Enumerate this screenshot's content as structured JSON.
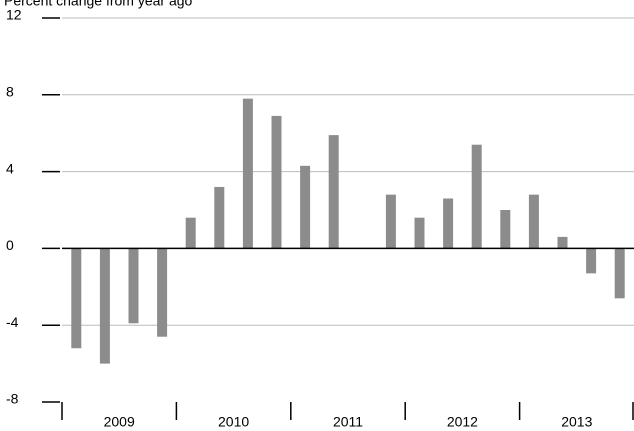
{
  "chart_data": {
    "type": "bar",
    "title": "Percent change from year ago",
    "groups": [
      "2009",
      "2010",
      "2011",
      "2012",
      "2013"
    ],
    "values": [
      [
        -5.2,
        -6.0,
        -3.9,
        -4.6
      ],
      [
        1.6,
        3.2,
        7.8,
        6.9
      ],
      [
        4.3,
        5.9,
        0,
        2.8
      ],
      [
        1.6,
        2.6,
        5.4,
        2.0
      ],
      [
        2.8,
        0.6,
        -1.3,
        -2.6
      ]
    ],
    "color": "#8c8c8c",
    "ylim": [
      -8,
      12
    ],
    "yticks": [
      -8,
      -4,
      0,
      4,
      8,
      12
    ],
    "grid": true
  }
}
